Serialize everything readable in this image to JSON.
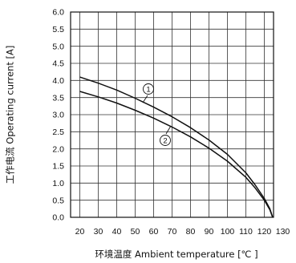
{
  "chart_data": {
    "type": "line",
    "xlabel": "环境温度 Ambient temperature [℃ ]",
    "ylabel": "工作电流 Operating current [A]",
    "xlim": [
      15,
      125
    ],
    "ylim": [
      0,
      6
    ],
    "x_ticks": [
      "20",
      "30",
      "40",
      "50",
      "60",
      "70",
      "80",
      "90",
      "100",
      "110",
      "120",
      "130"
    ],
    "y_ticks": [
      "0.0",
      "0.5",
      "1.0",
      "1.5",
      "2.0",
      "2.5",
      "3.0",
      "3.5",
      "4.0",
      "4.5",
      "5.0",
      "5.5",
      "6.0"
    ],
    "grid": true,
    "series": [
      {
        "name": "①",
        "x": [
          20,
          30,
          40,
          50,
          60,
          70,
          80,
          90,
          100,
          110,
          115,
          120,
          123,
          124.5
        ],
        "y": [
          4.1,
          3.92,
          3.72,
          3.48,
          3.22,
          2.94,
          2.62,
          2.26,
          1.84,
          1.3,
          0.95,
          0.55,
          0.25,
          0.0
        ]
      },
      {
        "name": "②",
        "x": [
          20,
          30,
          40,
          50,
          60,
          70,
          80,
          90,
          100,
          110,
          115,
          120,
          123,
          124.5
        ],
        "y": [
          3.68,
          3.52,
          3.34,
          3.13,
          2.9,
          2.64,
          2.35,
          2.02,
          1.64,
          1.17,
          0.86,
          0.5,
          0.22,
          0.0
        ]
      }
    ]
  }
}
